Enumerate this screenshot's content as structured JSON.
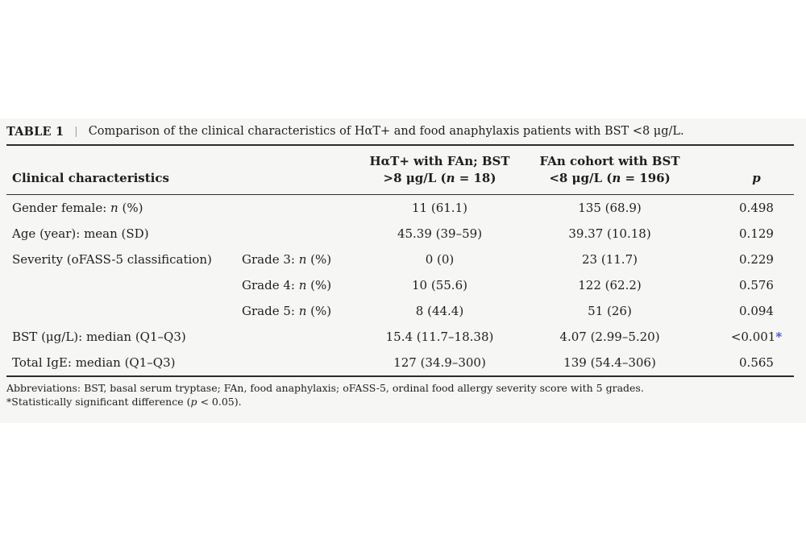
{
  "figure": {
    "label": "TABLE 1",
    "separator": "|",
    "caption": "Comparison of the clinical characteristics of HαT+ and food anaphylaxis patients with BST <8 μg/L.",
    "star_symbol": "*",
    "colors": {
      "significant_blue": "#3a48cf",
      "rule_dark": "#2d2d2d",
      "figure_background": "#f6f6f4",
      "text": "#1e1e1e"
    },
    "header": {
      "col1": "Clinical characteristics",
      "col3_line1": "HαT+ with FAn; BST",
      "col3_line2": [
        {
          "t": ">8 μg/L ("
        },
        {
          "t": "n",
          "i": true
        },
        {
          "t": " = 18)"
        }
      ],
      "col4_line1": "FAn cohort with BST",
      "col4_line2": [
        {
          "t": "<8 μg/L ("
        },
        {
          "t": "n",
          "i": true
        },
        {
          "t": " = 196)"
        }
      ],
      "col5": "p"
    },
    "rows": [
      {
        "label": [
          {
            "t": "Gender female: "
          },
          {
            "t": "n",
            "i": true
          },
          {
            "t": " (%)"
          }
        ],
        "sub": null,
        "hat_fan": "11 (61.1)",
        "fan_cohort": "135 (68.9)",
        "p": "0.498",
        "significant": false
      },
      {
        "label": [
          {
            "t": "Age (year): mean (SD)"
          }
        ],
        "sub": null,
        "hat_fan": "45.39 (39–59)",
        "fan_cohort": "39.37 (10.18)",
        "p": "0.129",
        "significant": false
      },
      {
        "label": [
          {
            "t": "Severity (oFASS-5 classification)"
          }
        ],
        "sub": [
          {
            "t": "Grade 3: "
          },
          {
            "t": "n",
            "i": true
          },
          {
            "t": " (%)"
          }
        ],
        "hat_fan": "0 (0)",
        "fan_cohort": "23 (11.7)",
        "p": "0.229",
        "significant": false
      },
      {
        "label": null,
        "sub": [
          {
            "t": "Grade 4: "
          },
          {
            "t": "n",
            "i": true
          },
          {
            "t": " (%)"
          }
        ],
        "hat_fan": "10 (55.6)",
        "fan_cohort": "122 (62.2)",
        "p": "0.576",
        "significant": false
      },
      {
        "label": null,
        "sub": [
          {
            "t": "Grade 5: "
          },
          {
            "t": "n",
            "i": true
          },
          {
            "t": " (%)"
          }
        ],
        "hat_fan": "8 (44.4)",
        "fan_cohort": "51 (26)",
        "p": "0.094",
        "significant": false
      },
      {
        "label": [
          {
            "t": "BST (μg/L): median (Q1–Q3)"
          }
        ],
        "sub": null,
        "hat_fan": "15.4 (11.7–18.38)",
        "fan_cohort": "4.07 (2.99–5.20)",
        "p": "<0.001",
        "significant": true
      },
      {
        "label": [
          {
            "t": "Total IgE: median (Q1–Q3)"
          }
        ],
        "sub": null,
        "hat_fan": "127 (34.9–300)",
        "fan_cohort": "139 (54.4–306)",
        "p": "0.565",
        "significant": false
      }
    ],
    "footnotes": {
      "abbreviations": "Abbreviations: BST, basal serum tryptase; FAn, food anaphylaxis; oFASS-5, ordinal food allergy severity score with 5 grades.",
      "significance": [
        {
          "t": "*Statistically significant difference ("
        },
        {
          "t": "p",
          "i": true
        },
        {
          "t": " < 0.05)."
        }
      ]
    }
  }
}
